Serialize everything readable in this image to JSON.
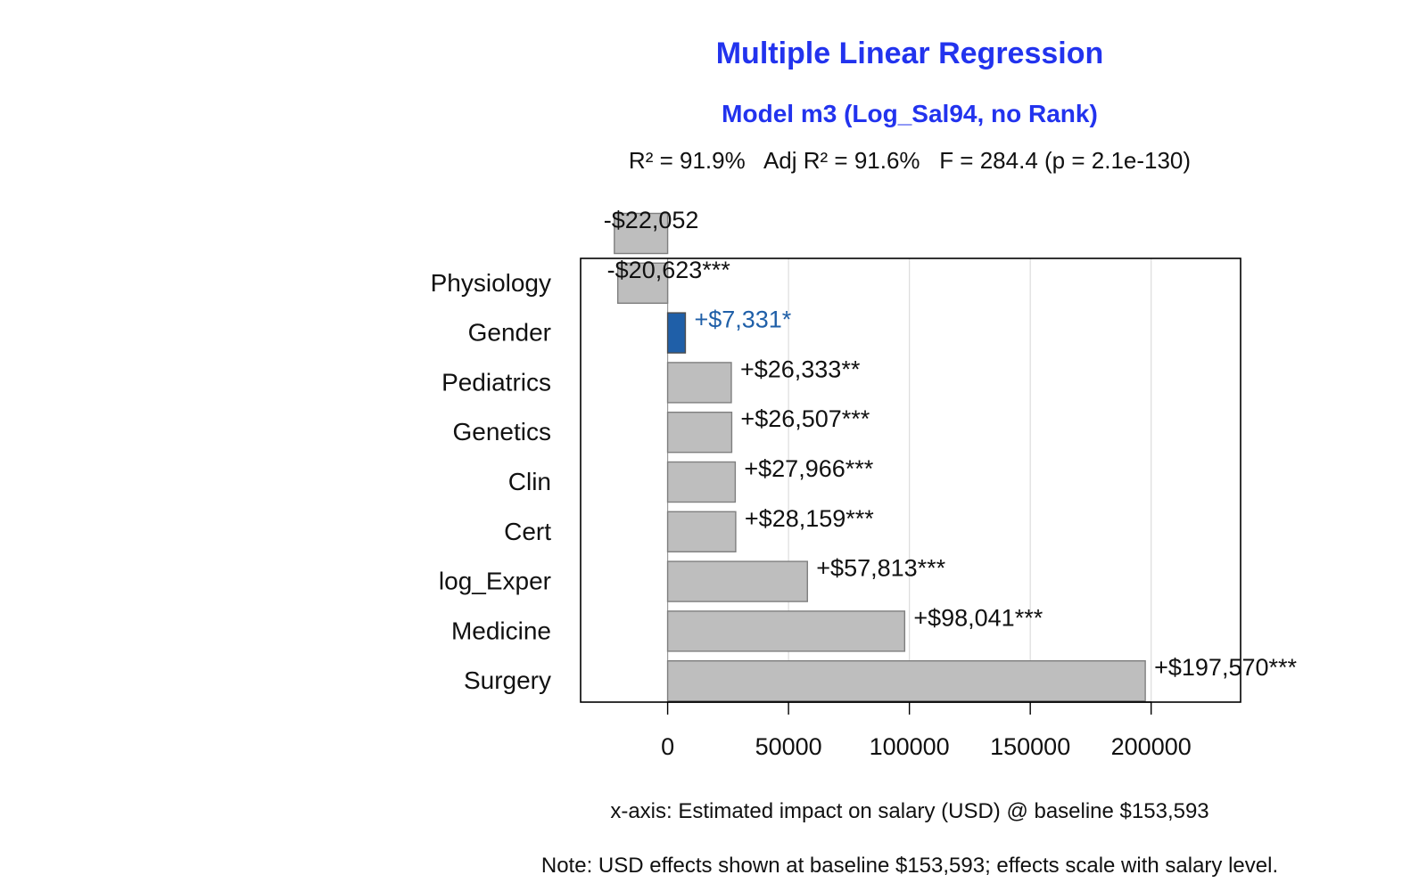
{
  "chart_data": {
    "type": "bar",
    "orientation": "horizontal",
    "title": "Multiple Linear Regression",
    "subtitle": "Model m3 (Log_Sal94, no Rank)",
    "stats_line": "R² = 91.9%   Adj R² = 91.6%   F = 284.4 (p = 2.1e-130)",
    "xlabel": "x-axis: Estimated impact on salary (USD) @ baseline $153,593",
    "note": "Note: USD effects shown at baseline $153,593; effects scale with salary level.",
    "xlim": [
      -36000,
      237000
    ],
    "x_ticks": [
      0,
      50000,
      100000,
      150000,
      200000
    ],
    "x_tick_labels": [
      "0",
      "50000",
      "100000",
      "150000",
      "200000"
    ],
    "grid": true,
    "bars": [
      {
        "label": "",
        "value": -22052,
        "text": "-$22,052",
        "highlight": false
      },
      {
        "label": "Physiology",
        "value": -20623,
        "text": "-$20,623***",
        "highlight": false
      },
      {
        "label": "Gender",
        "value": 7331,
        "text": "+$7,331*",
        "highlight": true
      },
      {
        "label": "Pediatrics",
        "value": 26333,
        "text": "+$26,333**",
        "highlight": false
      },
      {
        "label": "Genetics",
        "value": 26507,
        "text": "+$26,507***",
        "highlight": false
      },
      {
        "label": "Clin",
        "value": 27966,
        "text": "+$27,966***",
        "highlight": false
      },
      {
        "label": "Cert",
        "value": 28159,
        "text": "+$28,159***",
        "highlight": false
      },
      {
        "label": "log_Exper",
        "value": 57813,
        "text": "+$57,813***",
        "highlight": false
      },
      {
        "label": "Medicine",
        "value": 98041,
        "text": "+$98,041***",
        "highlight": false
      },
      {
        "label": "Surgery",
        "value": 197570,
        "text": "+$197,570***",
        "highlight": false
      }
    ],
    "colors": {
      "bar": "#bebebe",
      "bar_border": "#7f7f7f",
      "highlight": "#1f5fa8",
      "highlight_text": "#1f5fa8",
      "title": "#2233ee",
      "grid": "#dddddd"
    }
  }
}
